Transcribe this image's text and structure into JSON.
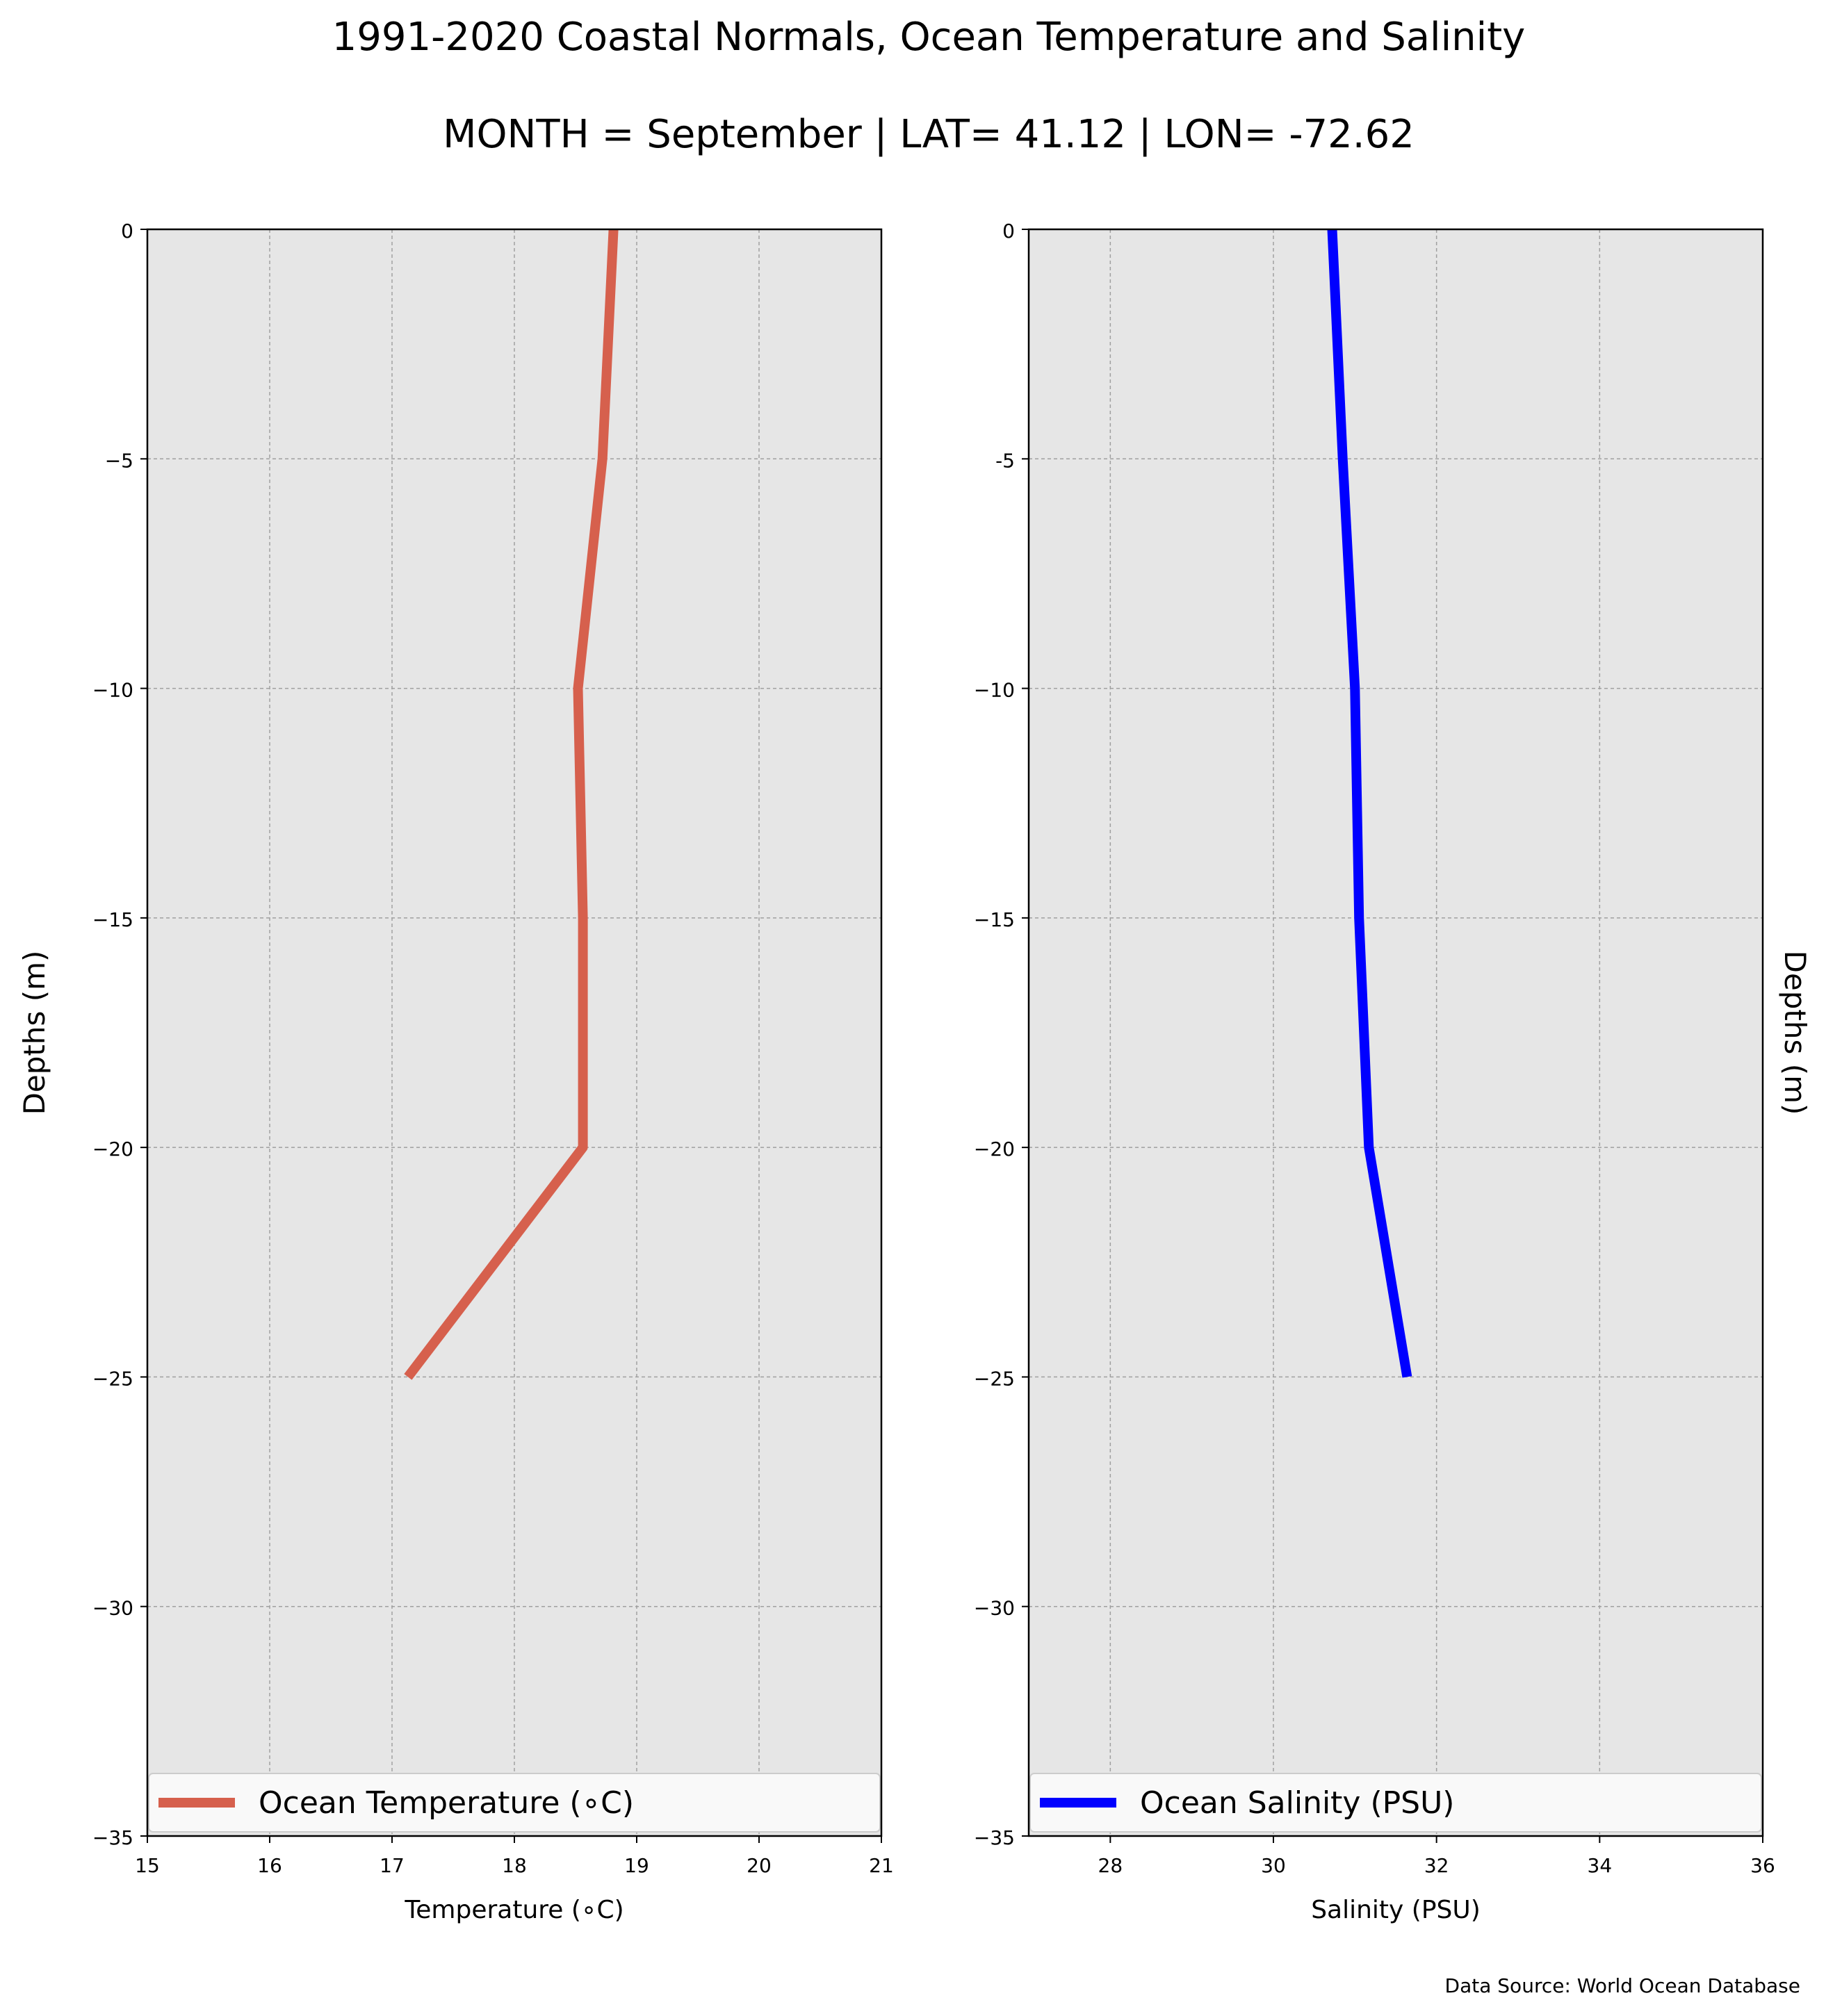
{
  "figure": {
    "title": "1991-2020 Coastal Normals, Ocean Temperature and Salinity",
    "subtitle": "MONTH = September | LAT= 41.12 | LON= -72.62",
    "source": "Data Source: World Ocean Database"
  },
  "chart_data": [
    {
      "type": "line",
      "xlabel": "Temperature ($^\\circ$C)",
      "xlabel_display": "Temperature (∘C)",
      "ylabel": "Depths (m)",
      "xlim": [
        15,
        21
      ],
      "ylim": [
        -35,
        0
      ],
      "xticks": [
        15,
        16,
        17,
        18,
        19,
        20,
        21
      ],
      "yticks": [
        0,
        -5,
        -10,
        -15,
        -20,
        -25,
        -30,
        -35
      ],
      "ytick_labels": [
        "0",
        "−5",
        "−10",
        "−15",
        "−20",
        "−25",
        "−30",
        "−35"
      ],
      "grid": true,
      "legend_position": "bottom",
      "series": [
        {
          "name": "Ocean Temperature (∘C)",
          "color": "#d6604d",
          "x": [
            18.81,
            18.72,
            18.52,
            18.56,
            18.56,
            17.13
          ],
          "y": [
            0,
            -5,
            -10,
            -15,
            -20,
            -25
          ]
        }
      ]
    },
    {
      "type": "line",
      "xlabel": "Salinity (PSU)",
      "ylabel": "Depths (m)",
      "xlim": [
        27,
        36
      ],
      "ylim": [
        -35,
        0
      ],
      "xticks": [
        28,
        30,
        32,
        34,
        36
      ],
      "yticks": [
        0,
        -5,
        -10,
        -15,
        -20,
        -25,
        -30,
        -35
      ],
      "ytick_labels": [
        "0",
        "-5",
        "−10",
        "−15",
        "−20",
        "−25",
        "−30",
        "−35"
      ],
      "grid": true,
      "legend_position": "bottom",
      "series": [
        {
          "name": "Ocean Salinity (PSU)",
          "color": "#0000ff",
          "x": [
            30.72,
            30.85,
            31.0,
            31.05,
            31.17,
            31.64
          ],
          "y": [
            0,
            -5,
            -10,
            -15,
            -20,
            -25
          ]
        }
      ]
    }
  ],
  "style": {
    "plot_bg": "#e6e6e6",
    "grid_color": "#a0a0a0",
    "legend_bg": "#f9f9f9"
  }
}
